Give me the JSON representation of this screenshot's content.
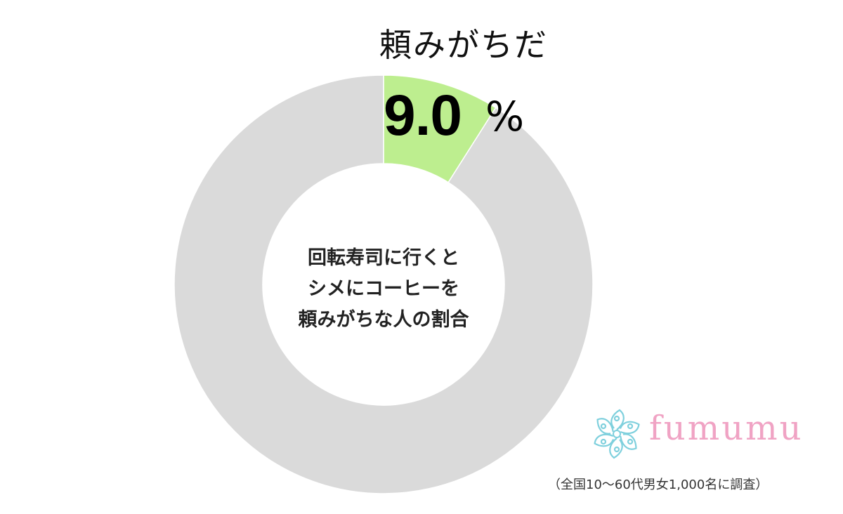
{
  "chart_data": {
    "type": "pie",
    "center_label": [
      "回転寿司に行くと",
      "シメにコーヒーを",
      "頼みがちな人の割合"
    ],
    "slices": [
      {
        "label": "頼みがちだ",
        "value": 9.0,
        "value_text": "9.0",
        "unit": "%",
        "color": "#bdee8f"
      },
      {
        "label": "",
        "value": 91.0,
        "color": "#dadada"
      }
    ]
  },
  "brand": {
    "name": "fumumu",
    "color": "#f0a3c4",
    "icon_color": "#7fd0dd"
  },
  "footnote": "（全国10～60代男女1,000名に調査）"
}
